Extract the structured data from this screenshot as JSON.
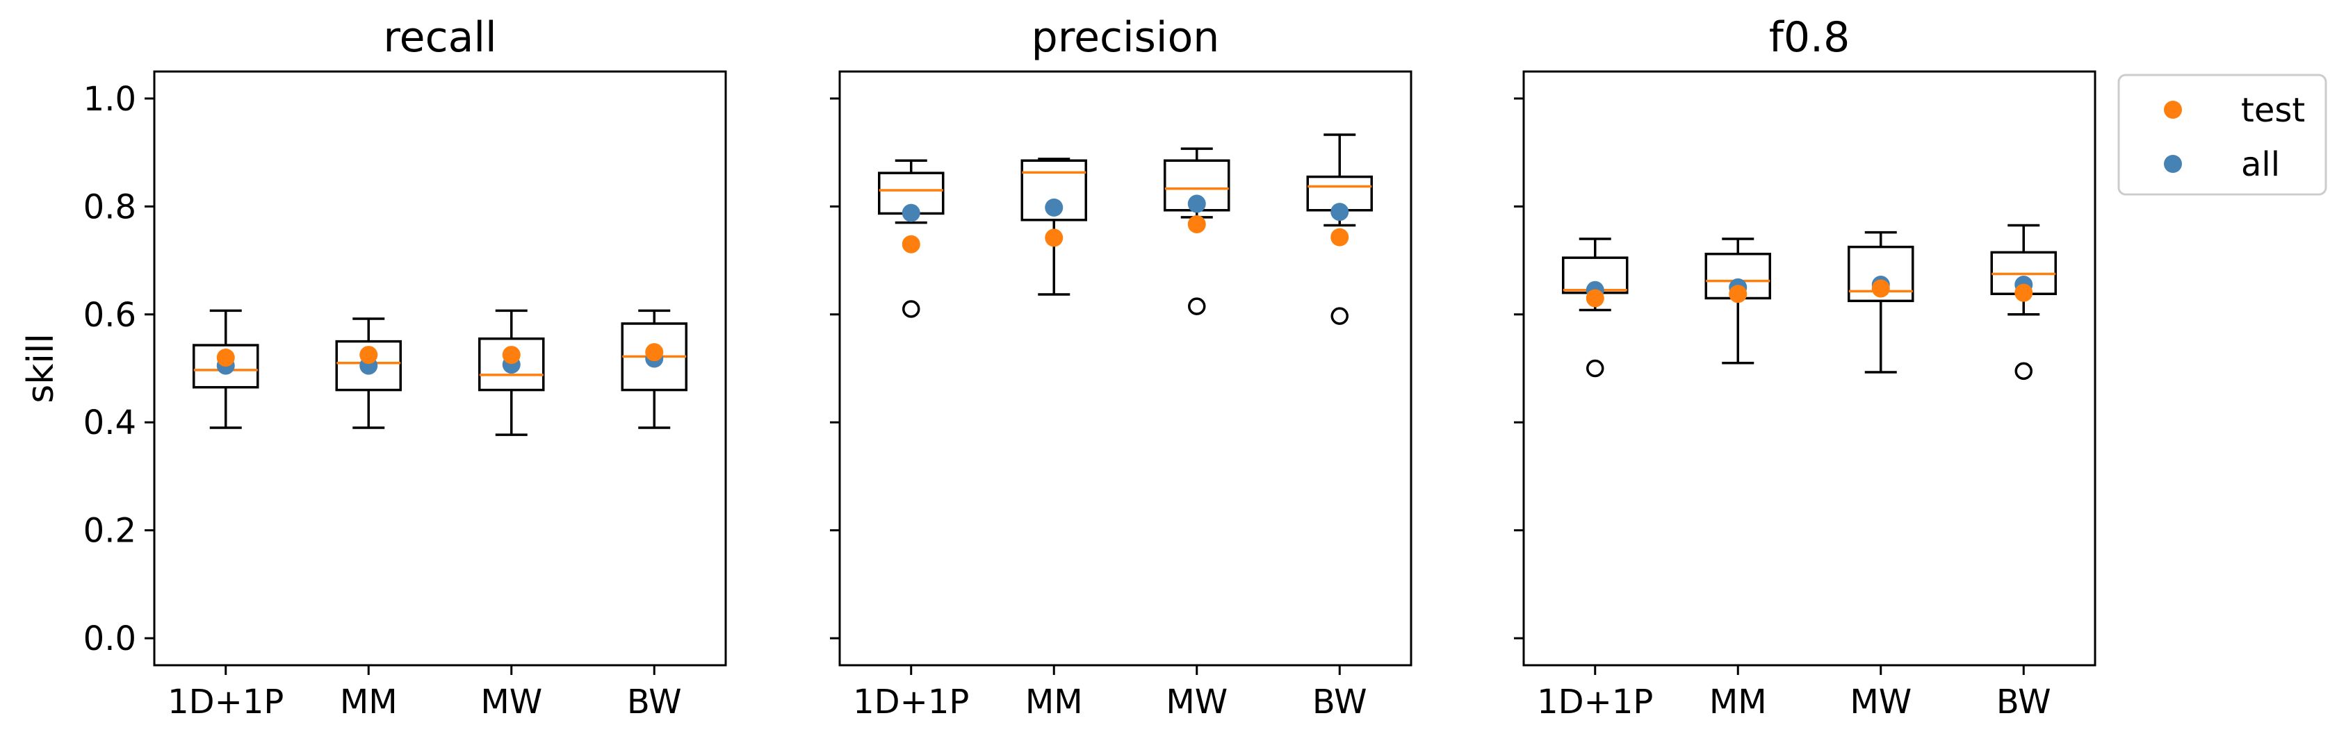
{
  "colors": {
    "test": "#ff7f0e",
    "all": "#4682b4",
    "median": "#ff7f0e",
    "box": "#000000"
  },
  "legend": {
    "placement": "outside-right",
    "entries": [
      {
        "label": "test",
        "color": "#ff7f0e"
      },
      {
        "label": "all",
        "color": "#4682b4"
      }
    ]
  },
  "chart_data": [
    {
      "type": "box",
      "title": "recall",
      "ylabel": "skill",
      "ylim": [
        -0.05,
        1.05
      ],
      "yticks": [
        "0.0",
        "0.2",
        "0.4",
        "0.6",
        "0.8",
        "1.0"
      ],
      "categories": [
        "1D+1P",
        "MM",
        "MW",
        "BW"
      ],
      "boxes": [
        {
          "whisker_low": 0.39,
          "q1": 0.465,
          "median": 0.497,
          "q3": 0.543,
          "whisker_high": 0.607,
          "outliers": [],
          "test": 0.52,
          "all": 0.505
        },
        {
          "whisker_low": 0.39,
          "q1": 0.46,
          "median": 0.51,
          "q3": 0.55,
          "whisker_high": 0.592,
          "outliers": [],
          "test": 0.525,
          "all": 0.505
        },
        {
          "whisker_low": 0.377,
          "q1": 0.46,
          "median": 0.488,
          "q3": 0.555,
          "whisker_high": 0.607,
          "outliers": [],
          "test": 0.525,
          "all": 0.507
        },
        {
          "whisker_low": 0.39,
          "q1": 0.46,
          "median": 0.522,
          "q3": 0.583,
          "whisker_high": 0.607,
          "outliers": [],
          "test": 0.53,
          "all": 0.518
        }
      ]
    },
    {
      "type": "box",
      "title": "precision",
      "ylabel": "",
      "ylim": [
        -0.05,
        1.05
      ],
      "yticks": [
        "",
        "",
        "",
        "",
        "",
        ""
      ],
      "categories": [
        "1D+1P",
        "MM",
        "MW",
        "BW"
      ],
      "boxes": [
        {
          "whisker_low": 0.77,
          "q1": 0.787,
          "median": 0.83,
          "q3": 0.862,
          "whisker_high": 0.885,
          "outliers": [
            0.61
          ],
          "test": 0.73,
          "all": 0.788
        },
        {
          "whisker_low": 0.637,
          "q1": 0.775,
          "median": 0.863,
          "q3": 0.885,
          "whisker_high": 0.888,
          "outliers": [],
          "test": 0.742,
          "all": 0.798
        },
        {
          "whisker_low": 0.78,
          "q1": 0.793,
          "median": 0.833,
          "q3": 0.885,
          "whisker_high": 0.907,
          "outliers": [
            0.615
          ],
          "test": 0.767,
          "all": 0.805
        },
        {
          "whisker_low": 0.765,
          "q1": 0.793,
          "median": 0.837,
          "q3": 0.855,
          "whisker_high": 0.933,
          "outliers": [
            0.597
          ],
          "test": 0.743,
          "all": 0.79
        }
      ]
    },
    {
      "type": "box",
      "title": "f0.8",
      "ylabel": "",
      "ylim": [
        -0.05,
        1.05
      ],
      "yticks": [
        "",
        "",
        "",
        "",
        "",
        ""
      ],
      "categories": [
        "1D+1P",
        "MM",
        "MW",
        "BW"
      ],
      "boxes": [
        {
          "whisker_low": 0.608,
          "q1": 0.64,
          "median": 0.645,
          "q3": 0.705,
          "whisker_high": 0.74,
          "outliers": [
            0.5
          ],
          "test": 0.63,
          "all": 0.645
        },
        {
          "whisker_low": 0.51,
          "q1": 0.63,
          "median": 0.662,
          "q3": 0.712,
          "whisker_high": 0.74,
          "outliers": [],
          "test": 0.638,
          "all": 0.65
        },
        {
          "whisker_low": 0.493,
          "q1": 0.625,
          "median": 0.643,
          "q3": 0.725,
          "whisker_high": 0.752,
          "outliers": [],
          "test": 0.648,
          "all": 0.655
        },
        {
          "whisker_low": 0.6,
          "q1": 0.638,
          "median": 0.675,
          "q3": 0.715,
          "whisker_high": 0.765,
          "outliers": [
            0.495
          ],
          "test": 0.64,
          "all": 0.655
        }
      ]
    }
  ]
}
